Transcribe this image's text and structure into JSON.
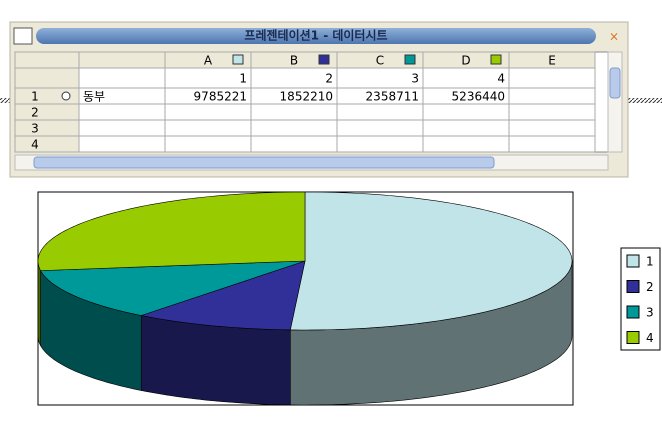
{
  "window": {
    "title": "프레젠테이션1 - 데이터시트"
  },
  "datasheet": {
    "columns": [
      "A",
      "B",
      "C",
      "D",
      "E"
    ],
    "row_numbers": [
      "1",
      "2",
      "3",
      "4"
    ],
    "row_label": "동부"
  },
  "chart_data": {
    "type": "pie",
    "categories": [
      "1",
      "2",
      "3",
      "4"
    ],
    "values": [
      9785221,
      1852210,
      2358711,
      5236440
    ],
    "colors": [
      "#c0e4e8",
      "#303098",
      "#009999",
      "#99cc00"
    ],
    "legend": "right",
    "three_d": true
  }
}
